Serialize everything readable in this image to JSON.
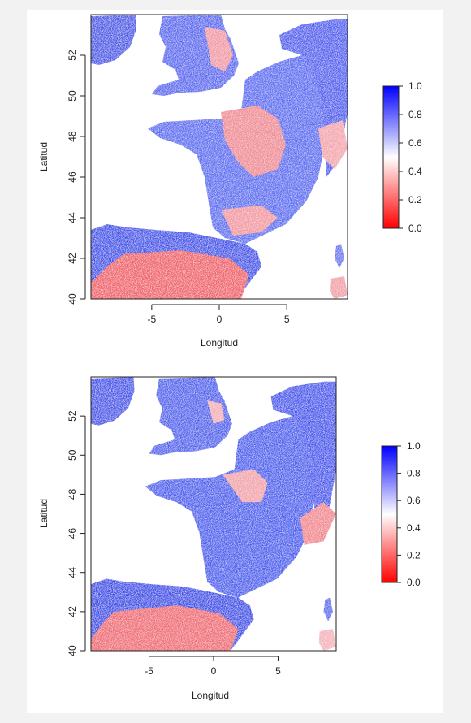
{
  "maps": [
    {
      "xlabel": "Longitud",
      "ylabel": "Latitud",
      "x_ticks": [
        "-5",
        "0",
        "5"
      ],
      "y_ticks": [
        "40",
        "42",
        "44",
        "46",
        "48",
        "50",
        "52"
      ],
      "x_range": [
        -9.5,
        9.5
      ],
      "y_range": [
        40,
        54
      ],
      "legend_ticks": [
        "0.0",
        "0.2",
        "0.4",
        "0.6",
        "0.8",
        "1.0"
      ]
    },
    {
      "xlabel": "Longitud",
      "ylabel": "Latitud",
      "x_ticks": [
        "-5",
        "0",
        "5"
      ],
      "y_ticks": [
        "40",
        "42",
        "44",
        "46",
        "48",
        "50",
        "52"
      ],
      "x_range": [
        -9.5,
        9.5
      ],
      "y_range": [
        40,
        54
      ],
      "legend_ticks": [
        "0.0",
        "0.2",
        "0.4",
        "0.6",
        "0.8",
        "1.0"
      ]
    }
  ],
  "colors": {
    "low": "#ff0000",
    "mid": "#ffffff",
    "high": "#0000ff",
    "background": "#f2f2f2"
  }
}
